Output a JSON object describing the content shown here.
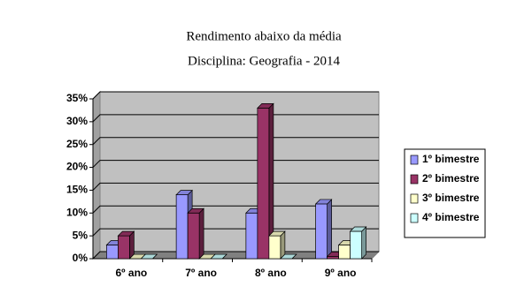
{
  "chart_data": {
    "type": "bar3d",
    "title": "Rendimento abaixo da média",
    "subtitle": "Disciplina: Geografia - 2014",
    "categories": [
      "6º ano",
      "7º ano",
      "8º ano",
      "9º ano"
    ],
    "series": [
      {
        "name": "1º bimestre",
        "color": "#9999ff",
        "values": [
          3,
          14,
          10,
          12
        ]
      },
      {
        "name": "2º bimestre",
        "color": "#993366",
        "values": [
          5,
          10,
          33,
          0.5
        ]
      },
      {
        "name": "3º bimestre",
        "color": "#ffffcc",
        "values": [
          0,
          0,
          5,
          3
        ]
      },
      {
        "name": "4º bimestre",
        "color": "#ccffff",
        "values": [
          0,
          0,
          0,
          6
        ]
      }
    ],
    "ylim": [
      0,
      35
    ],
    "yticks": [
      {
        "value": 0,
        "label": "0%"
      },
      {
        "value": 5,
        "label": "5%"
      },
      {
        "value": 10,
        "label": "10%"
      },
      {
        "value": 15,
        "label": "15%"
      },
      {
        "value": 20,
        "label": "20%"
      },
      {
        "value": 25,
        "label": "25%"
      },
      {
        "value": 30,
        "label": "30%"
      },
      {
        "value": 35,
        "label": "35%"
      }
    ],
    "grid": true,
    "legend": "right"
  }
}
